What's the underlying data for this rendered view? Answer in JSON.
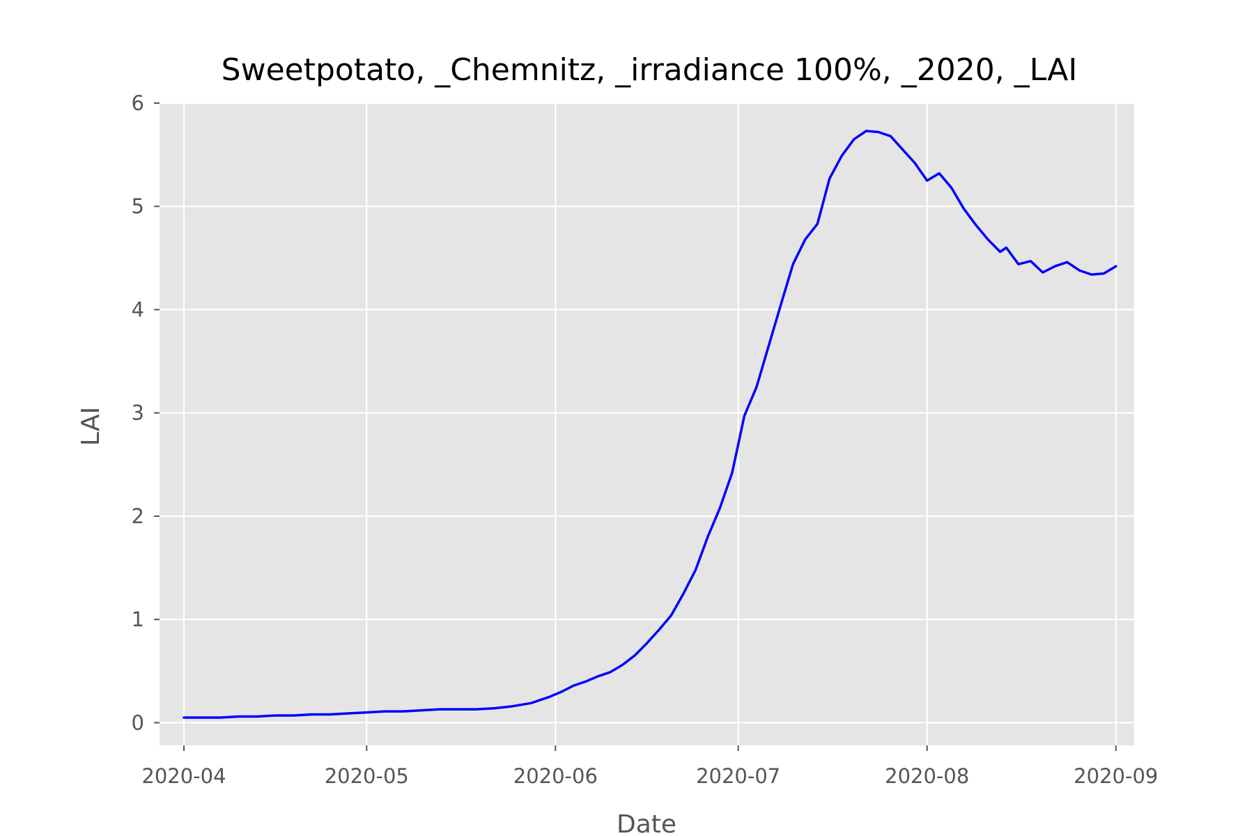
{
  "chart_data": {
    "type": "line",
    "title": "Sweetpotato, _Chemnitz, _irradiance 100%, _2020, _LAI",
    "xlabel": "Date",
    "ylabel": "LAI",
    "x_range": [
      "2020-03-28",
      "2020-09-04"
    ],
    "ylim": [
      -0.22,
      6.0
    ],
    "x_ticks": [
      "2020-04",
      "2020-05",
      "2020-06",
      "2020-07",
      "2020-08",
      "2020-09"
    ],
    "x_tick_dates": [
      "2020-04-01",
      "2020-05-01",
      "2020-06-01",
      "2020-07-01",
      "2020-08-01",
      "2020-09-01"
    ],
    "y_ticks": [
      "0",
      "1",
      "2",
      "3",
      "4",
      "5",
      "6"
    ],
    "y_tick_values": [
      0,
      1,
      2,
      3,
      4,
      5,
      6
    ],
    "grid": true,
    "background": "#e5e5e5",
    "grid_color": "#ffffff",
    "series": [
      {
        "color": "#0000ff",
        "points": [
          [
            "2020-04-01",
            0.05
          ],
          [
            "2020-04-07",
            0.05
          ],
          [
            "2020-04-10",
            0.06
          ],
          [
            "2020-04-13",
            0.06
          ],
          [
            "2020-04-16",
            0.07
          ],
          [
            "2020-04-19",
            0.07
          ],
          [
            "2020-04-22",
            0.08
          ],
          [
            "2020-04-25",
            0.08
          ],
          [
            "2020-04-28",
            0.09
          ],
          [
            "2020-05-01",
            0.1
          ],
          [
            "2020-05-04",
            0.11
          ],
          [
            "2020-05-07",
            0.11
          ],
          [
            "2020-05-10",
            0.12
          ],
          [
            "2020-05-13",
            0.13
          ],
          [
            "2020-05-19",
            0.13
          ],
          [
            "2020-05-22",
            0.14
          ],
          [
            "2020-05-25",
            0.16
          ],
          [
            "2020-05-28",
            0.19
          ],
          [
            "2020-05-31",
            0.25
          ],
          [
            "2020-06-02",
            0.3
          ],
          [
            "2020-06-04",
            0.36
          ],
          [
            "2020-06-06",
            0.4
          ],
          [
            "2020-06-08",
            0.45
          ],
          [
            "2020-06-10",
            0.49
          ],
          [
            "2020-06-12",
            0.56
          ],
          [
            "2020-06-14",
            0.65
          ],
          [
            "2020-06-16",
            0.77
          ],
          [
            "2020-06-18",
            0.9
          ],
          [
            "2020-06-20",
            1.04
          ],
          [
            "2020-06-22",
            1.25
          ],
          [
            "2020-06-24",
            1.48
          ],
          [
            "2020-06-26",
            1.8
          ],
          [
            "2020-06-28",
            2.08
          ],
          [
            "2020-06-30",
            2.42
          ],
          [
            "2020-07-02",
            2.97
          ],
          [
            "2020-07-04",
            3.25
          ],
          [
            "2020-07-06",
            3.65
          ],
          [
            "2020-07-08",
            4.05
          ],
          [
            "2020-07-10",
            4.44
          ],
          [
            "2020-07-12",
            4.68
          ],
          [
            "2020-07-14",
            4.83
          ],
          [
            "2020-07-16",
            5.27
          ],
          [
            "2020-07-18",
            5.49
          ],
          [
            "2020-07-20",
            5.65
          ],
          [
            "2020-07-22",
            5.73
          ],
          [
            "2020-07-24",
            5.72
          ],
          [
            "2020-07-26",
            5.68
          ],
          [
            "2020-07-28",
            5.55
          ],
          [
            "2020-07-30",
            5.42
          ],
          [
            "2020-08-01",
            5.25
          ],
          [
            "2020-08-03",
            5.32
          ],
          [
            "2020-08-05",
            5.18
          ],
          [
            "2020-08-07",
            4.98
          ],
          [
            "2020-08-09",
            4.82
          ],
          [
            "2020-08-11",
            4.68
          ],
          [
            "2020-08-13",
            4.56
          ],
          [
            "2020-08-14",
            4.6
          ],
          [
            "2020-08-16",
            4.44
          ],
          [
            "2020-08-18",
            4.47
          ],
          [
            "2020-08-20",
            4.36
          ],
          [
            "2020-08-22",
            4.42
          ],
          [
            "2020-08-24",
            4.46
          ],
          [
            "2020-08-26",
            4.38
          ],
          [
            "2020-08-28",
            4.34
          ],
          [
            "2020-08-30",
            4.35
          ],
          [
            "2020-09-01",
            4.42
          ]
        ]
      }
    ]
  }
}
